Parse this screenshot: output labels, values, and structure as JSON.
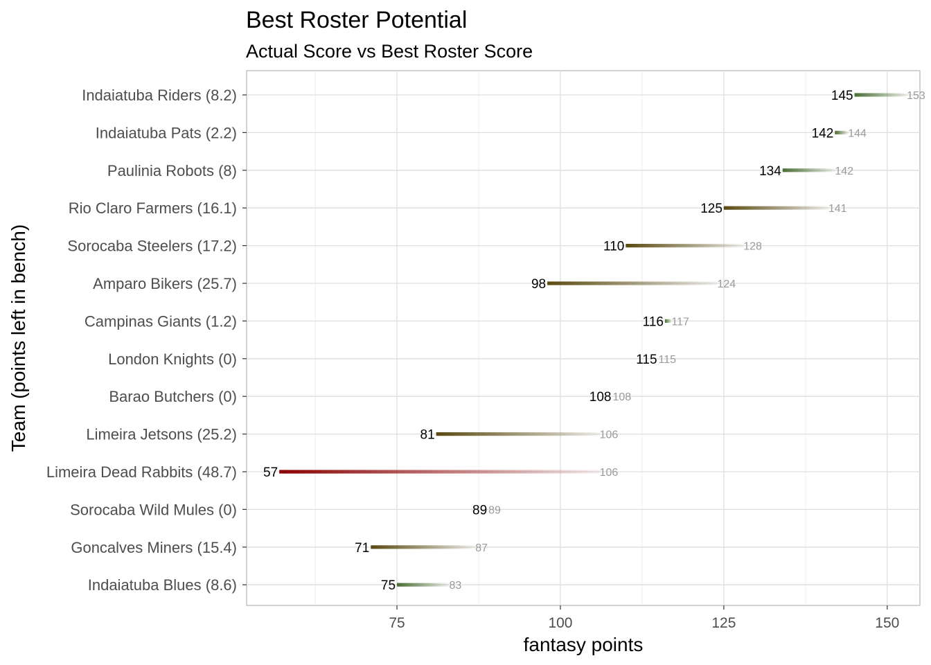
{
  "chart_data": {
    "type": "bar",
    "title": "Best Roster Potential",
    "subtitle": "Actual Score vs Best Roster Score",
    "xlabel": "fantasy points",
    "ylabel": "Team (points left in bench)",
    "xlim": [
      52,
      155
    ],
    "xticks": [
      75,
      100,
      125,
      150
    ],
    "grid": true,
    "legend": "none",
    "colors": {
      "good": "#4a6e33",
      "mid": "#5a4a10",
      "bad": "#8b0000"
    },
    "rows": [
      {
        "label": "Indaiatuba Riders (8.2)",
        "actual": 145,
        "best": 153,
        "actual_label": "145",
        "best_label": "153"
      },
      {
        "label": "Indaiatuba Pats (2.2)",
        "actual": 142,
        "best": 144,
        "actual_label": "142",
        "best_label": "144"
      },
      {
        "label": "Paulinia Robots (8)",
        "actual": 134,
        "best": 142,
        "actual_label": "134",
        "best_label": "142"
      },
      {
        "label": "Rio Claro Farmers (16.1)",
        "actual": 125,
        "best": 141,
        "actual_label": "125",
        "best_label": "141"
      },
      {
        "label": "Sorocaba Steelers (17.2)",
        "actual": 110,
        "best": 128,
        "actual_label": "110",
        "best_label": "128"
      },
      {
        "label": "Amparo Bikers (25.7)",
        "actual": 98,
        "best": 124,
        "actual_label": "98",
        "best_label": "124"
      },
      {
        "label": "Campinas Giants (1.2)",
        "actual": 116,
        "best": 117,
        "actual_label": "116",
        "best_label": "117"
      },
      {
        "label": "London Knights (0)",
        "actual": 115,
        "best": 115,
        "actual_label": "115",
        "best_label": "115"
      },
      {
        "label": "Barao Butchers (0)",
        "actual": 108,
        "best": 108,
        "actual_label": "108",
        "best_label": "108"
      },
      {
        "label": "Limeira Jetsons (25.2)",
        "actual": 81,
        "best": 106,
        "actual_label": "81",
        "best_label": "106"
      },
      {
        "label": "Limeira Dead Rabbits (48.7)",
        "actual": 57,
        "best": 106,
        "actual_label": "57",
        "best_label": "106"
      },
      {
        "label": "Sorocaba Wild Mules (0)",
        "actual": 89,
        "best": 89,
        "actual_label": "89",
        "best_label": "89"
      },
      {
        "label": "Goncalves Miners (15.4)",
        "actual": 71,
        "best": 87,
        "actual_label": "71",
        "best_label": "87"
      },
      {
        "label": "Indaiatuba Blues (8.6)",
        "actual": 75,
        "best": 83,
        "actual_label": "75",
        "best_label": "83"
      }
    ]
  }
}
